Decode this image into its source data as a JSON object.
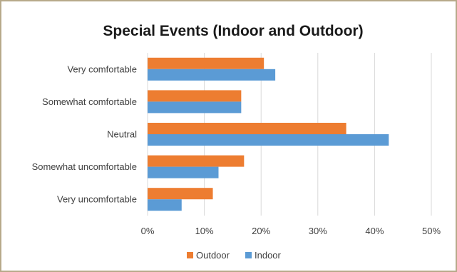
{
  "chart_data": {
    "type": "bar",
    "orientation": "horizontal",
    "title": "Special Events (Indoor and Outdoor)",
    "xlabel": "",
    "ylabel": "",
    "categories": [
      "Very comfortable",
      "Somewhat comfortable",
      "Neutral",
      "Somewhat uncomfortable",
      "Very uncomfortable"
    ],
    "series": [
      {
        "name": "Outdoor",
        "color": "#ed7d31",
        "values": [
          20.5,
          16.5,
          35.0,
          17.0,
          11.5
        ]
      },
      {
        "name": "Indoor",
        "color": "#5b9bd5",
        "values": [
          22.5,
          16.5,
          42.5,
          12.5,
          6.0
        ]
      }
    ],
    "xlim": [
      0,
      50
    ],
    "tick_values": [
      0,
      10,
      20,
      30,
      40,
      50
    ],
    "tick_labels": [
      "0%",
      "10%",
      "20%",
      "30%",
      "40%",
      "50%"
    ],
    "grid": true,
    "legend_position": "bottom"
  }
}
